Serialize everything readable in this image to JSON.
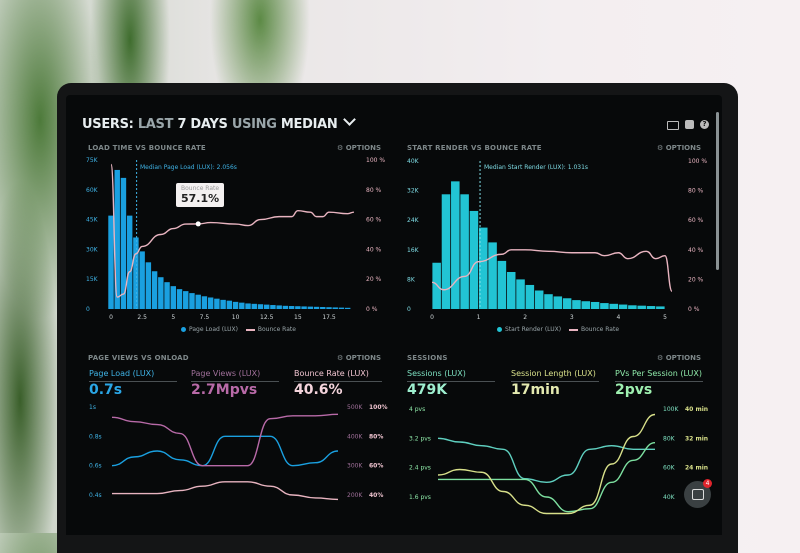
{
  "header": {
    "prefix": "USERS:",
    "last": "LAST",
    "days": "7 DAYS",
    "using": "USING",
    "median": "MEDIAN",
    "chevron": "chevron-down-icon",
    "icons": [
      "monitor-icon",
      "image-icon",
      "help-icon"
    ]
  },
  "panels": [
    {
      "title": "LOAD TIME VS BOUNCE RATE",
      "options": "OPTIONS"
    },
    {
      "title": "START RENDER VS BOUNCE RATE",
      "options": "OPTIONS"
    },
    {
      "title": "PAGE VIEWS VS ONLOAD",
      "options": "OPTIONS",
      "metrics": [
        {
          "label": "Page Load (LUX)",
          "value": "0.7s"
        },
        {
          "label": "Page Views (LUX)",
          "value": "2.7Mpvs"
        },
        {
          "label": "Bounce Rate (LUX)",
          "value": "40.6%"
        }
      ]
    },
    {
      "title": "SESSIONS",
      "options": "OPTIONS",
      "metrics": [
        {
          "label": "Sessions (LUX)",
          "value": "479K"
        },
        {
          "label": "Session Length (LUX)",
          "value": "17min"
        },
        {
          "label": "PVs Per Session (LUX)",
          "value": "2pvs"
        }
      ]
    }
  ],
  "tooltip": {
    "label": "Bounce Rate",
    "sub": "%",
    "value": "57.1%"
  },
  "chat_widget": {
    "icon": "chat-icon",
    "badge": "4"
  },
  "colors": {
    "blue": "#1aa0e0",
    "cyan": "#22c4d4",
    "pink": "#e8b4c0",
    "purple": "#b86aa8",
    "green": "#7de0a0",
    "teal": "#5fd0c0",
    "yellow": "#d8e08a"
  },
  "chart_data": [
    {
      "type": "bar",
      "title": "LOAD TIME VS BOUNCE RATE",
      "annotation": "Median Page Load (LUX): 2.056s",
      "median_x": 2.056,
      "xticks": [
        "0",
        "2.5",
        "5",
        "7.5",
        "10",
        "12.5",
        "15",
        "17.5"
      ],
      "xtick_values": [
        0,
        2.5,
        5,
        7.5,
        10,
        12.5,
        15,
        17.5
      ],
      "yticks_left": [
        "0",
        "15K",
        "30K",
        "45K",
        "60K",
        "75K"
      ],
      "ylim_left": [
        0,
        75000
      ],
      "yticks_right": [
        "0 %",
        "20 %",
        "40 %",
        "60 %",
        "80 %",
        "100 %"
      ],
      "ylim_right": [
        0,
        100
      ],
      "legend": [
        "Page Load (LUX)",
        "Bounce Rate"
      ],
      "bar_width": 0.5,
      "bars_x": [
        0,
        0.5,
        1,
        1.5,
        2,
        2.5,
        3,
        3.5,
        4,
        4.5,
        5,
        5.5,
        6,
        6.5,
        7,
        7.5,
        8,
        8.5,
        9,
        9.5,
        10,
        10.5,
        11,
        11.5,
        12,
        12.5,
        13,
        13.5,
        14,
        14.5,
        15,
        15.5,
        16,
        16.5,
        17,
        17.5,
        18,
        18.5,
        19
      ],
      "bars_y": [
        47000,
        70000,
        66000,
        47000,
        36000,
        29000,
        23500,
        19000,
        16000,
        13500,
        11500,
        10000,
        9000,
        8000,
        7200,
        6400,
        5800,
        5200,
        4600,
        4200,
        3600,
        3200,
        2800,
        2600,
        2400,
        2200,
        2000,
        1800,
        1600,
        1500,
        1400,
        1300,
        1200,
        1100,
        1000,
        900,
        800,
        700,
        600
      ],
      "line": {
        "name": "Bounce Rate",
        "x": [
          0,
          0.5,
          1,
          1.5,
          2,
          2.5,
          4,
          5,
          6,
          7,
          8,
          10,
          11,
          12,
          13.5,
          14.5,
          15,
          16,
          16.5,
          17,
          17.5,
          19,
          19.5
        ],
        "y": [
          97,
          8,
          10,
          25,
          37,
          42,
          50,
          54,
          57,
          57.1,
          58,
          57,
          56,
          60,
          62,
          62,
          66,
          65,
          62,
          62,
          65,
          64,
          65
        ]
      }
    },
    {
      "type": "bar",
      "title": "START RENDER VS BOUNCE RATE",
      "annotation": "Median Start Render (LUX): 1.031s",
      "median_x": 1.031,
      "xticks": [
        "0",
        "1",
        "2",
        "3",
        "4",
        "5"
      ],
      "xtick_values": [
        0,
        1,
        2,
        3,
        4,
        5
      ],
      "yticks_left": [
        "0",
        "8K",
        "16K",
        "24K",
        "32K",
        "40K"
      ],
      "ylim_left": [
        0,
        40000
      ],
      "yticks_right": [
        "0 %",
        "20 %",
        "40 %",
        "60 %",
        "80 %",
        "100 %"
      ],
      "ylim_right": [
        0,
        100
      ],
      "legend": [
        "Start Render (LUX)",
        "Bounce Rate"
      ],
      "bar_width": 0.2,
      "bars_x": [
        0.1,
        0.3,
        0.5,
        0.7,
        0.9,
        1.1,
        1.3,
        1.5,
        1.7,
        1.9,
        2.1,
        2.3,
        2.5,
        2.7,
        2.9,
        3.1,
        3.3,
        3.5,
        3.7,
        3.9,
        4.1,
        4.3,
        4.5,
        4.7,
        4.9
      ],
      "bars_y": [
        12500,
        31000,
        34500,
        31000,
        26500,
        22000,
        18000,
        13000,
        10000,
        8000,
        6500,
        5000,
        4000,
        3400,
        2900,
        2400,
        2100,
        1900,
        1600,
        1400,
        1200,
        1000,
        900,
        800,
        700
      ],
      "line": {
        "name": "Bounce Rate",
        "x": [
          0,
          0.25,
          0.7,
          1,
          1.5,
          1.7,
          2,
          2.5,
          3,
          3.5,
          3.7,
          4,
          4.2,
          4.6,
          4.8,
          5,
          5.15
        ],
        "y": [
          18,
          13,
          22,
          32,
          37,
          40,
          40,
          39,
          38,
          38,
          36,
          38,
          34,
          39,
          34,
          36,
          12
        ]
      }
    },
    {
      "type": "line",
      "title": "PAGE VIEWS VS ONLOAD",
      "yticks_left": [
        "0.4s",
        "0.6s",
        "0.8s",
        "1s"
      ],
      "ylim_left": [
        0.4,
        1
      ],
      "yticks_right_a": [
        "200K",
        "300K",
        "400K",
        "500K"
      ],
      "yticks_right_b": [
        "40%",
        "60%",
        "80%",
        "100%"
      ],
      "series": [
        {
          "name": "Page Load (LUX)",
          "axis": "left",
          "x": [
            0,
            1,
            2,
            3,
            4,
            5,
            6,
            7,
            8,
            9,
            10
          ],
          "y": [
            0.6,
            0.66,
            0.7,
            0.64,
            0.6,
            0.8,
            0.8,
            0.8,
            0.6,
            0.62,
            0.7
          ]
        },
        {
          "name": "Page Views (LUX)",
          "axis": "right_a",
          "ylim": [
            200000,
            500000
          ],
          "x": [
            0,
            1,
            2,
            3,
            4,
            5,
            6,
            7,
            8,
            9,
            10
          ],
          "y": [
            465000,
            450000,
            440000,
            410000,
            300000,
            300000,
            300000,
            460000,
            470000,
            470000,
            475000
          ]
        },
        {
          "name": "Bounce Rate (LUX)",
          "axis": "right_b",
          "ylim": [
            40,
            100
          ],
          "x": [
            0,
            1,
            2,
            3,
            4,
            5,
            6,
            7,
            8,
            9,
            10
          ],
          "y": [
            41,
            41,
            41,
            43,
            46,
            49,
            49,
            46,
            40,
            38,
            37
          ]
        }
      ]
    },
    {
      "type": "line",
      "title": "SESSIONS",
      "yticks_left": [
        "1.6 pvs",
        "2.4 pvs",
        "3.2 pvs",
        "4 pvs"
      ],
      "ylim_left": [
        1.6,
        4
      ],
      "yticks_right_a": [
        "40K",
        "60K",
        "80K",
        "100K"
      ],
      "yticks_right_b": [
        "24 min",
        "32 min",
        "40 min"
      ],
      "series": [
        {
          "name": "PVs Per Session (LUX)",
          "axis": "left",
          "x": [
            0,
            1,
            2,
            3,
            4,
            5,
            6,
            7,
            8,
            9,
            10
          ],
          "y": [
            3.2,
            3.1,
            3.0,
            2.9,
            2.1,
            2.0,
            2.2,
            2.9,
            3.0,
            2.9,
            2.9
          ]
        },
        {
          "name": "Sessions (LUX)",
          "axis": "right_a",
          "ylim": [
            40000,
            100000
          ],
          "x": [
            0,
            1,
            2,
            3,
            4,
            5,
            6,
            7,
            8,
            9,
            10
          ],
          "y": [
            52000,
            52000,
            52000,
            52000,
            52000,
            40000,
            30000,
            32000,
            50000,
            65000,
            77000
          ]
        },
        {
          "name": "Session Length (LUX)",
          "axis": "right_b",
          "ylim": [
            8,
            40
          ],
          "x": [
            0,
            1,
            2,
            3,
            4,
            5,
            6,
            7,
            8,
            9,
            10
          ],
          "y": [
            16,
            18,
            17,
            10,
            5,
            2,
            2,
            5,
            20,
            30,
            38
          ]
        }
      ]
    }
  ]
}
